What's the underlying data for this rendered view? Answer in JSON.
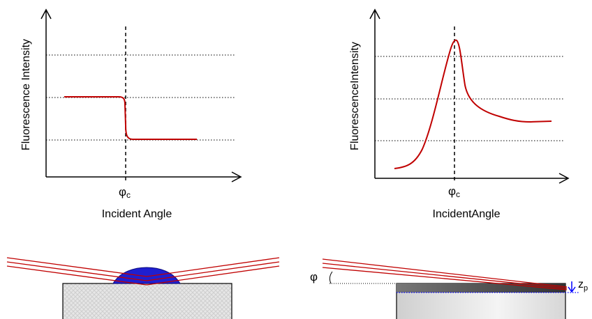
{
  "left_plot": {
    "ylabel": "Fluorescence Intensity",
    "xlabel": "Incident Angle",
    "critical_label": "φ",
    "critical_sub": "c"
  },
  "right_plot": {
    "ylabel": "FluorescenceIntensity",
    "xlabel": "IncidentAngle",
    "critical_label": "φ",
    "critical_sub": "c"
  },
  "bottom_right": {
    "angle_label": "φ",
    "depth_label": "z",
    "depth_sub": "p"
  },
  "colors": {
    "curve": "#c00000",
    "beam": "#c00000",
    "droplet": "#1f1fd0",
    "depth_marker": "#0000ff",
    "axis": "#000000",
    "grid": "#000000"
  }
}
